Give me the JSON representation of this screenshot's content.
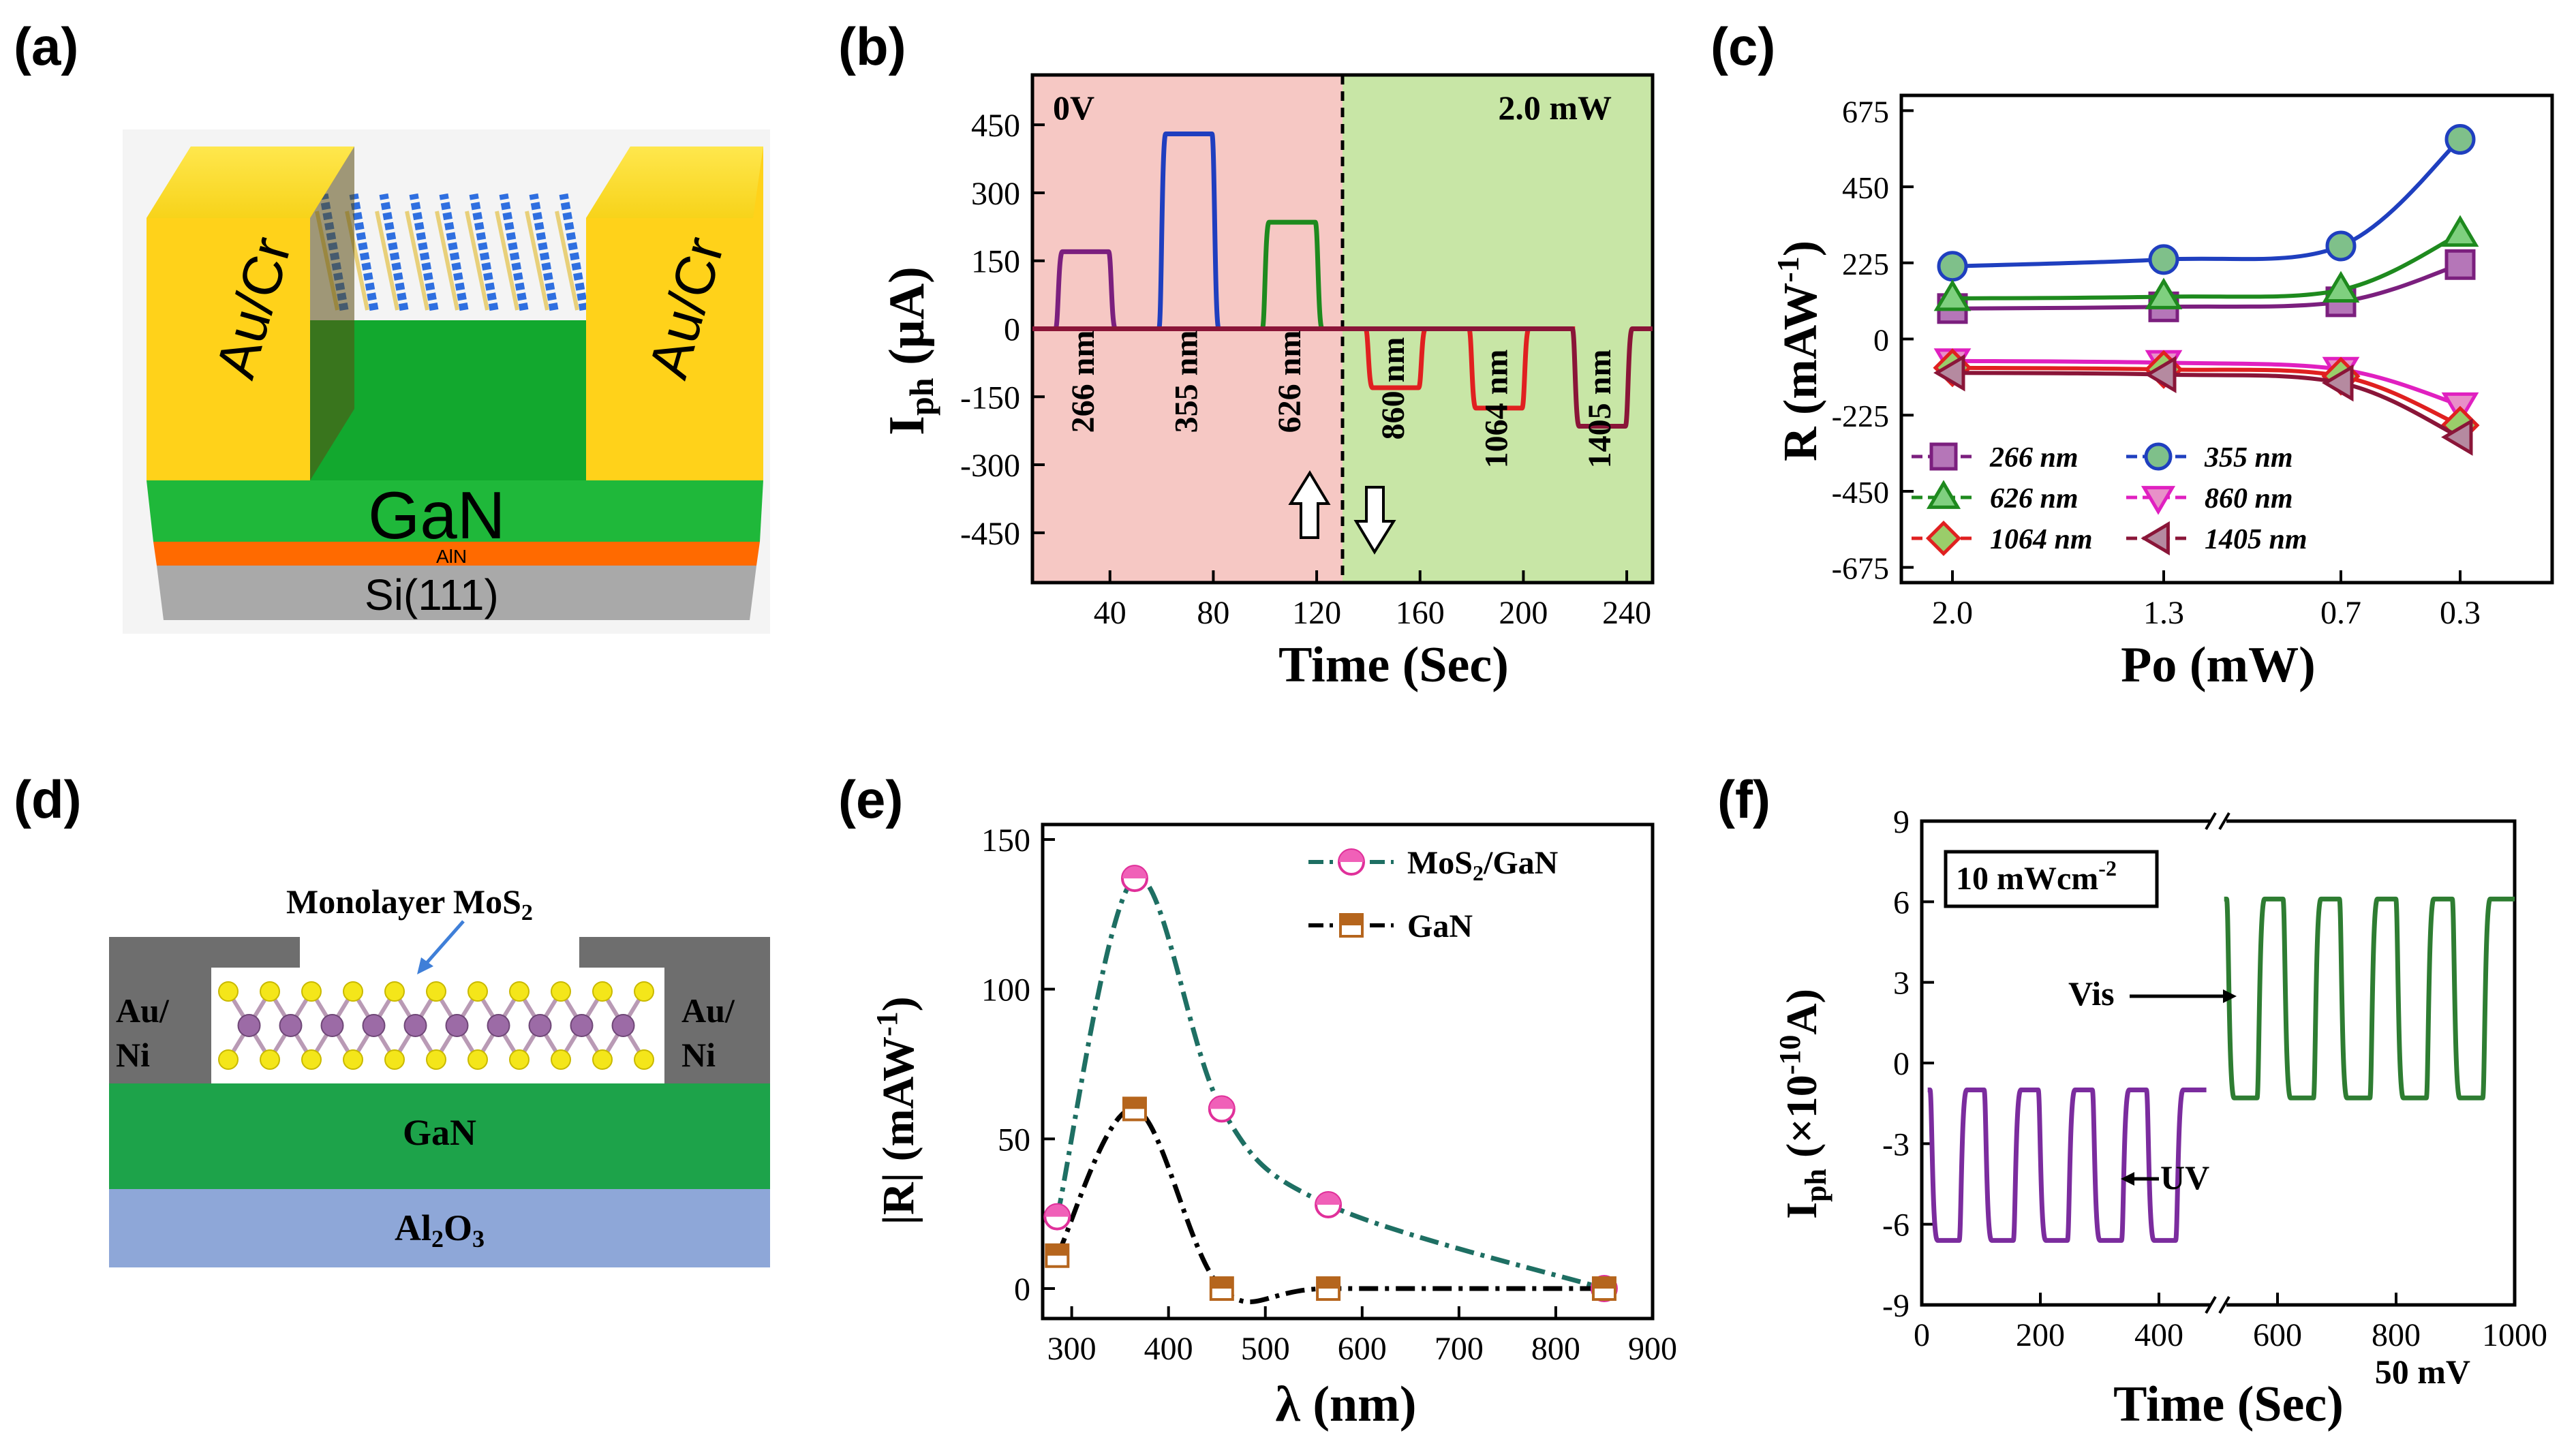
{
  "colors": {
    "purple": "#7B1F7E",
    "blue": "#1F3FBF",
    "green": "#1E8A1E",
    "red": "#E02020",
    "maroon": "#8A1538",
    "bgRed": "#F6C8C4",
    "bgGreen": "#C8E6A6",
    "teal": "#1E6F63",
    "brown": "#B5651D",
    "gold": "#F5C518",
    "grey": "#BDBDBD",
    "al2o3": "#8EA7D8"
  },
  "panels": {
    "a": {
      "label": "(a)",
      "layers": {
        "gan": "GaN",
        "aln": "AlN",
        "si": "Si(111)"
      },
      "contacts": [
        "Au/Cr",
        "Au/Cr"
      ]
    },
    "b": {
      "label": "(b)"
    },
    "c": {
      "label": "(c)"
    },
    "d": {
      "label": "(d)",
      "title": "Monolayer MoS",
      "title_sub": "2",
      "contacts": [
        "Au/",
        "Ni",
        "Au/",
        "Ni"
      ],
      "layers": {
        "gan": "GaN",
        "al2o3_main": "Al",
        "al2o3_sub1": "2",
        "al2o3_mid": "O",
        "al2o3_sub2": "3"
      }
    },
    "e": {
      "label": "(e)"
    },
    "f": {
      "label": "(f)"
    }
  },
  "chart_data": [
    {
      "id": "b",
      "type": "line",
      "title": "",
      "xlabel": "Time (Sec)",
      "ylabel_main": "I",
      "ylabel_sub": "ph",
      "ylabel_rest": " (μA)",
      "xlim": [
        10,
        250
      ],
      "ylim": [
        -560,
        560
      ],
      "xticks": [
        40,
        80,
        120,
        160,
        200,
        240
      ],
      "yticks": [
        450,
        300,
        150,
        0,
        -150,
        -300,
        -450
      ],
      "regions": [
        {
          "from": 10,
          "to": 130,
          "label": "0V"
        },
        {
          "from": 130,
          "to": 250,
          "label": "2.0 mW"
        }
      ],
      "divider_x": 130,
      "series": [
        {
          "name": "266 nm",
          "on": 20,
          "off": 40,
          "value": 170,
          "color": "purple"
        },
        {
          "name": "355 nm",
          "on": 60,
          "off": 80,
          "value": 430,
          "color": "blue"
        },
        {
          "name": "626 nm",
          "on": 100,
          "off": 120,
          "value": 235,
          "color": "green"
        },
        {
          "name": "860 nm",
          "on": 140,
          "off": 160,
          "value": -130,
          "color": "red"
        },
        {
          "name": "1064 nm",
          "on": 180,
          "off": 200,
          "value": -175,
          "color": "red"
        },
        {
          "name": "1405 nm",
          "on": 220,
          "off": 240,
          "value": -215,
          "color": "maroon"
        }
      ]
    },
    {
      "id": "c",
      "type": "line",
      "xlabel": "Po (mW)",
      "ylabel_main": "R (mAW",
      "ylabel_sup": "-1",
      "ylabel_rest": ")",
      "categories": [
        "2.0",
        "1.3",
        "0.7",
        "0.3"
      ],
      "ylim": [
        -720,
        720
      ],
      "yticks": [
        675,
        450,
        225,
        0,
        -225,
        -450,
        -675
      ],
      "series": [
        {
          "name": "266 nm",
          "values": [
            90,
            95,
            110,
            220
          ],
          "marker": "square",
          "color": "purple",
          "fill": "#B576B8"
        },
        {
          "name": "355 nm",
          "values": [
            215,
            235,
            275,
            590
          ],
          "marker": "circle",
          "color": "blue",
          "fill": "#7FC08A"
        },
        {
          "name": "626 nm",
          "values": [
            120,
            125,
            145,
            310
          ],
          "marker": "triangle-up",
          "color": "green",
          "fill": "#7FD07F"
        },
        {
          "name": "860 nm",
          "values": [
            -65,
            -70,
            -90,
            -195
          ],
          "marker": "triangle-down",
          "color": "#E020C0",
          "fill": "#E890C8"
        },
        {
          "name": "1064 nm",
          "values": [
            -85,
            -90,
            -110,
            -255
          ],
          "marker": "diamond",
          "color": "red",
          "fill": "#9ACD6A"
        },
        {
          "name": "1405 nm",
          "values": [
            -100,
            -105,
            -130,
            -290
          ],
          "marker": "triangle-left",
          "color": "maroon",
          "fill": "#B58AA0"
        }
      ]
    },
    {
      "id": "e",
      "type": "line",
      "xlabel": "λ (nm)",
      "ylabel_main": "|R| (mAW",
      "ylabel_sup": "-1",
      "ylabel_rest": ")",
      "xlim": [
        270,
        900
      ],
      "ylim": [
        -10,
        155
      ],
      "xticks": [
        300,
        400,
        500,
        600,
        700,
        800,
        900
      ],
      "yticks": [
        0,
        50,
        100,
        150
      ],
      "series": [
        {
          "name": "MoS2/GaN",
          "label_main": "MoS",
          "label_sub": "2",
          "label_rest": "/GaN",
          "x": [
            285,
            365,
            455,
            565,
            850
          ],
          "values": [
            24,
            137,
            60,
            28,
            0
          ],
          "color": "teal"
        },
        {
          "name": "GaN",
          "x": [
            285,
            365,
            455,
            565,
            850
          ],
          "values": [
            11,
            60,
            0,
            0,
            0
          ],
          "color": "black"
        }
      ]
    },
    {
      "id": "f",
      "type": "line",
      "xlabel": "Time (Sec)",
      "ylabel_main": "I",
      "ylabel_sub": "ph",
      "ylabel_rest_a": " (×10",
      "ylabel_sup": "-10",
      "ylabel_rest_b": "A)",
      "xlim": [
        0,
        1000
      ],
      "break_at": 500,
      "ylim": [
        -9,
        9
      ],
      "xticks": [
        0,
        200,
        400,
        600,
        800,
        1000
      ],
      "yticks": [
        9,
        6,
        3,
        0,
        -3,
        -6,
        -9
      ],
      "boxed": {
        "main": "10 mWcm",
        "sup": "-2"
      },
      "bias": "50 mV",
      "series": [
        {
          "name": "UV",
          "cycles": 5,
          "x_start": 10,
          "x_end": 480,
          "high": -1.0,
          "low": -6.6,
          "color": "#7B2C9E"
        },
        {
          "name": "Vis",
          "cycles": 5,
          "x_start": 510,
          "x_end": 1000,
          "high": 6.1,
          "low": -1.3,
          "color": "#2E7D32"
        }
      ]
    }
  ]
}
